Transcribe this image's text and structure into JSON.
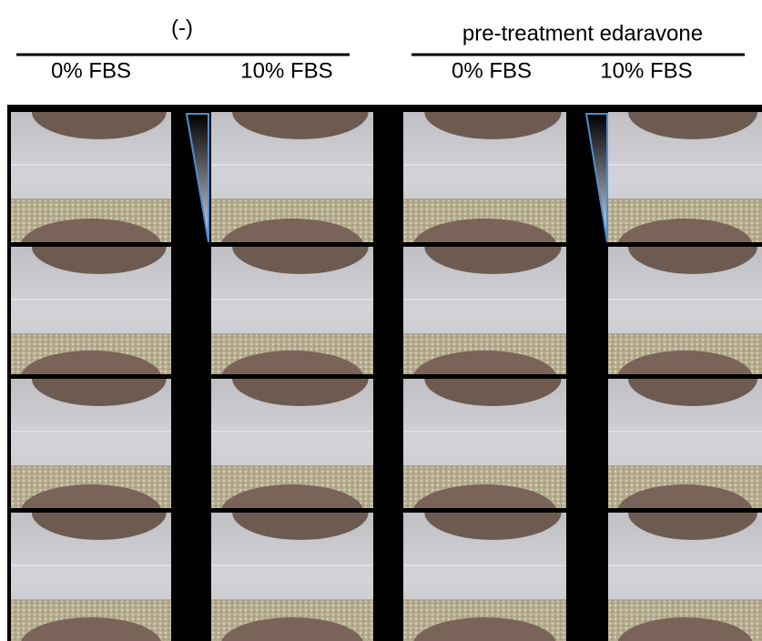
{
  "groups": [
    {
      "label": "(-)",
      "columns": [
        "0% FBS",
        "10% FBS"
      ]
    },
    {
      "label": "pre-treatment edaravone",
      "columns": [
        "0% FBS",
        "10% FBS"
      ]
    }
  ]
}
